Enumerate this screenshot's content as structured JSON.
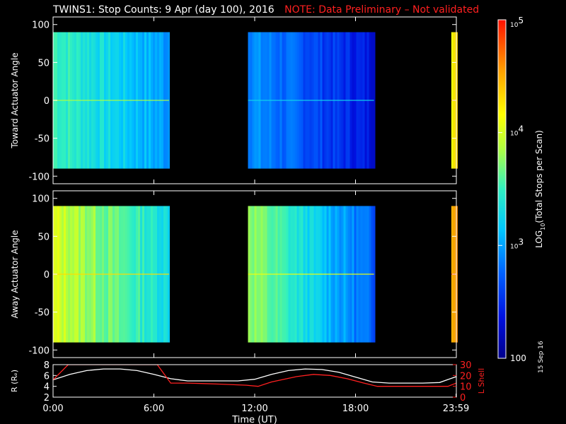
{
  "title": {
    "main": "TWINS1: Stop Counts:  9 Apr (day 100), 2016",
    "note": "NOTE: Data Preliminary – Not validated",
    "note_color": "#ff2020"
  },
  "stamp": "15 Sep 16",
  "colors": {
    "background": "#000000",
    "axis": "#ffffff",
    "r_line": "#ffffff",
    "l_line": "#ff2020"
  },
  "chart_data": [
    {
      "type": "heatmap",
      "panel": "toward",
      "ylabel": "Toward Actuator Angle",
      "ylim": [
        -110,
        110
      ],
      "yticks": [
        100,
        50,
        0,
        -50,
        -100
      ],
      "xlim": [
        0,
        24
      ],
      "data_angle_range": [
        -90,
        90
      ],
      "blocks": [
        {
          "x_start": 0.0,
          "x_end": 6.9,
          "level_log10_start": 3.55,
          "level_log10_end": 2.95
        },
        {
          "x_start": 11.6,
          "x_end": 19.1,
          "level_log10_start": 2.95,
          "level_log10_end": 2.35
        },
        {
          "x_start": 23.7,
          "x_end": 24.0,
          "level_log10_start": 4.25,
          "level_log10_end": 4.25
        }
      ]
    },
    {
      "type": "heatmap",
      "panel": "away",
      "ylabel": "Away Actuator Angle",
      "ylim": [
        -110,
        110
      ],
      "yticks": [
        100,
        50,
        0,
        -50,
        -100
      ],
      "xlim": [
        0,
        24
      ],
      "data_angle_range": [
        -90,
        90
      ],
      "blocks": [
        {
          "x_start": 0.0,
          "x_end": 6.9,
          "level_log10_start": 4.0,
          "level_log10_end": 3.3
        },
        {
          "x_start": 11.6,
          "x_end": 19.1,
          "level_log10_start": 3.8,
          "level_log10_end": 2.7
        },
        {
          "x_start": 23.7,
          "x_end": 24.0,
          "level_log10_start": 4.6,
          "level_log10_end": 4.6
        }
      ]
    },
    {
      "type": "line",
      "panel": "orbit",
      "xlabel": "Time (UT)",
      "xticks": [
        "0:00",
        "6:00",
        "12:00",
        "18:00",
        "23:59"
      ],
      "xtick_values": [
        0,
        6,
        12,
        18,
        23.98
      ],
      "ylabel_left": "R (Rₑ)",
      "ylim_left": [
        2,
        8
      ],
      "yticks_left": [
        8,
        6,
        4,
        2
      ],
      "ylabel_right": "L Shell",
      "ylim_right": [
        0,
        30
      ],
      "yticks_right": [
        30,
        20,
        10,
        0
      ],
      "series": [
        {
          "axis": "left",
          "x": [
            0,
            1,
            2,
            3,
            4,
            5,
            6,
            7,
            8,
            9,
            10,
            11,
            12,
            13,
            14,
            15,
            16,
            17,
            18,
            19,
            20,
            21,
            22,
            23,
            24
          ],
          "values": [
            5.2,
            6.2,
            6.9,
            7.2,
            7.2,
            6.9,
            6.2,
            5.4,
            5.0,
            5.0,
            5.0,
            5.0,
            5.3,
            6.2,
            6.9,
            7.2,
            7.1,
            6.6,
            5.7,
            4.8,
            4.6,
            4.6,
            4.6,
            4.7,
            5.8
          ]
        },
        {
          "axis": "right",
          "x": [
            0,
            0.9,
            1.3,
            5.4,
            6.2,
            7.0,
            8,
            9,
            10,
            11.5,
            12.2,
            13,
            14.5,
            15.5,
            16.5,
            17.5,
            18.5,
            19.3,
            20,
            22,
            23.5,
            24
          ],
          "values": [
            16,
            30,
            30,
            30,
            30,
            13,
            13,
            12.5,
            12,
            11,
            10,
            14,
            19,
            21,
            20,
            17,
            13,
            10,
            10,
            10,
            10,
            13
          ]
        }
      ]
    },
    {
      "type": "colorbar",
      "label": "LOG",
      "label_sub": "10",
      "label_rest": "(Total Stops per Scan)",
      "tick_labels": [
        {
          "base": "10",
          "exp": "5",
          "log10": 5
        },
        {
          "base": "10",
          "exp": "4",
          "log10": 4
        },
        {
          "base": "10",
          "exp": "3",
          "log10": 3
        },
        {
          "base": "100",
          "exp": "",
          "log10": 2
        }
      ],
      "range_log10": [
        2,
        5
      ]
    }
  ]
}
